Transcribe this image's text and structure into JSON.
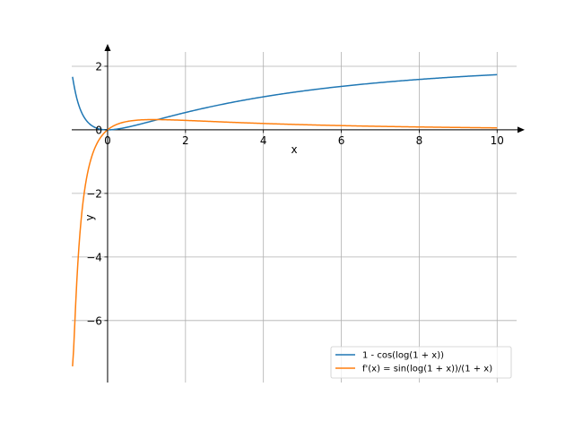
{
  "chart_data": {
    "type": "line",
    "title": "",
    "xlabel": "x",
    "ylabel": "y",
    "xlim": [
      -0.92,
      10.5
    ],
    "ylim": [
      -7.95,
      2.45
    ],
    "grid": true,
    "legend_position": "lower-right",
    "x_ticks": [
      0,
      2,
      4,
      6,
      8,
      10
    ],
    "x_tick_labels": [
      "0",
      "2",
      "4",
      "6",
      "8",
      "10"
    ],
    "y_ticks": [
      2,
      0,
      -2,
      -4,
      -6
    ],
    "y_tick_labels": [
      "2",
      "0",
      "−2",
      "−4",
      "−6"
    ],
    "x_domain": [
      -0.9,
      10
    ],
    "series": [
      {
        "name": "1 - cos(log(1 + x))",
        "color": "#1f77b4",
        "x": [
          -0.9,
          -0.7,
          -0.5,
          -0.3,
          -0.1,
          0,
          0.5,
          1,
          2,
          3,
          4,
          5,
          6,
          7,
          8,
          9,
          10
        ],
        "y": [
          1.67,
          0.68,
          0.23,
          0.06,
          0.01,
          0,
          0.08,
          0.23,
          0.55,
          0.82,
          1.04,
          1.22,
          1.36,
          1.47,
          1.56,
          1.63,
          1.68
        ]
      },
      {
        "name": "f'(x) = sin(log(1 + x))/(1 + x)",
        "color": "#ff7f0e",
        "x": [
          -0.9,
          -0.7,
          -0.5,
          -0.3,
          -0.1,
          0,
          0.5,
          1,
          2,
          3,
          4,
          5,
          6,
          7,
          8,
          9,
          10
        ],
        "y": [
          -7.44,
          -3.11,
          -1.28,
          -0.5,
          -0.11,
          0,
          0.26,
          0.32,
          0.3,
          0.25,
          0.2,
          0.16,
          0.13,
          0.11,
          0.09,
          0.08,
          0.06
        ]
      }
    ]
  }
}
